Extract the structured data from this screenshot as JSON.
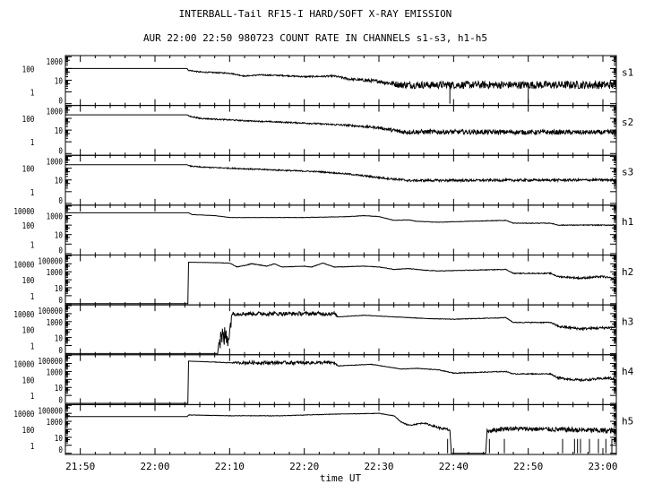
{
  "chart_data": {
    "type": "line",
    "title": "INTERBALL-Tail RF15-I HARD/SOFT X-RAY EMISSION",
    "subtitle": "AUR 22:00 22:50 980723  COUNT RATE IN CHANNELS s1-s3, h1-h5",
    "xlabel": "time UT",
    "x_unit": "minutes after 22:00 UT",
    "xlim": [
      -12,
      61.8
    ],
    "x_ticks": [
      {
        "t": -10,
        "label": "21:50"
      },
      {
        "t": 0,
        "label": "22:00"
      },
      {
        "t": 10,
        "label": "22:10"
      },
      {
        "t": 20,
        "label": "22:20"
      },
      {
        "t": 30,
        "label": "22:30"
      },
      {
        "t": 40,
        "label": "22:40"
      },
      {
        "t": 50,
        "label": "22:50"
      },
      {
        "t": 60,
        "label": "23:00"
      }
    ],
    "y_scale": "log10 count rate (0 counts drawn at level -1)",
    "panels": [
      {
        "name": "s1",
        "ylim": [
          -1.15,
          3.1
        ],
        "y_ticks": [
          "0",
          "1",
          "10",
          "100",
          "1000"
        ],
        "series": [
          [
            -12,
            2,
            0
          ],
          [
            4.3,
            2,
            0
          ],
          [
            4.5,
            1.85,
            0.05
          ],
          [
            6,
            1.7,
            0.05
          ],
          [
            10,
            1.6,
            0.05
          ],
          [
            12,
            1.35,
            0.05
          ],
          [
            14,
            1.45,
            0.05
          ],
          [
            17,
            1.4,
            0.05
          ],
          [
            20,
            1.3,
            0.06
          ],
          [
            24,
            1.35,
            0.08
          ],
          [
            26,
            1.1,
            0.1
          ],
          [
            30,
            0.9,
            0.15
          ],
          [
            33,
            0.6,
            0.3
          ],
          [
            62,
            0.6,
            0.35
          ]
        ],
        "dropouts": [
          39.5,
          50.0
        ]
      },
      {
        "name": "s2",
        "ylim": [
          -1.15,
          3.1
        ],
        "y_ticks": [
          "0",
          "1",
          "10",
          "100",
          "1000"
        ],
        "series": [
          [
            -12,
            2.3,
            0
          ],
          [
            4.3,
            2.3,
            0
          ],
          [
            4.5,
            2.2,
            0.05
          ],
          [
            6,
            2.0,
            0.05
          ],
          [
            12,
            1.8,
            0.05
          ],
          [
            20,
            1.6,
            0.06
          ],
          [
            26,
            1.4,
            0.08
          ],
          [
            30,
            1.2,
            0.1
          ],
          [
            33,
            0.85,
            0.2
          ],
          [
            62,
            0.8,
            0.2
          ]
        ],
        "dropouts": []
      },
      {
        "name": "s3",
        "ylim": [
          -1.15,
          3.1
        ],
        "y_ticks": [
          "0",
          "1",
          "10",
          "100",
          "1000"
        ],
        "series": [
          [
            -12,
            2.3,
            0
          ],
          [
            4.3,
            2.3,
            0
          ],
          [
            4.5,
            2.2,
            0.04
          ],
          [
            6,
            2.1,
            0.04
          ],
          [
            14,
            1.9,
            0.05
          ],
          [
            22,
            1.7,
            0.05
          ],
          [
            26,
            1.5,
            0.06
          ],
          [
            30,
            1.2,
            0.08
          ],
          [
            34,
            0.95,
            0.1
          ],
          [
            62,
            1.0,
            0.1
          ]
        ],
        "dropouts": []
      },
      {
        "name": "h1",
        "ylim": [
          -1.15,
          4.1
        ],
        "y_ticks": [
          "0",
          "1",
          "10",
          "100",
          "1000",
          "10000"
        ],
        "series": [
          [
            -12,
            3.3,
            0
          ],
          [
            4.5,
            3.3,
            0
          ],
          [
            5,
            3.1,
            0.01
          ],
          [
            8,
            3.0,
            0.01
          ],
          [
            10,
            2.8,
            0.01
          ],
          [
            20,
            2.8,
            0.02
          ],
          [
            26,
            2.9,
            0.02
          ],
          [
            28,
            3.0,
            0.02
          ],
          [
            30,
            2.9,
            0.02
          ],
          [
            32,
            2.5,
            0.02
          ],
          [
            34,
            2.55,
            0.02
          ],
          [
            35,
            2.4,
            0.02
          ],
          [
            38,
            2.3,
            0.02
          ],
          [
            42,
            2.4,
            0.02
          ],
          [
            47,
            2.5,
            0.03
          ],
          [
            48,
            2.2,
            0.03
          ],
          [
            53,
            2.2,
            0.03
          ],
          [
            54,
            2.0,
            0.04
          ],
          [
            62,
            2.0,
            0.05
          ]
        ],
        "dropouts": []
      },
      {
        "name": "h2",
        "ylim": [
          -1.15,
          5.1
        ],
        "y_ticks": [
          "0",
          "1",
          "10",
          "100",
          "1000",
          "10000",
          "100000"
        ],
        "series": [
          [
            -12,
            -1,
            0
          ],
          [
            4.4,
            -1,
            0
          ],
          [
            4.5,
            4.2,
            0
          ],
          [
            10,
            4.1,
            0.03
          ],
          [
            11,
            3.6,
            0.03
          ],
          [
            13,
            4.0,
            0.05
          ],
          [
            15,
            3.7,
            0.03
          ],
          [
            16,
            4.0,
            0.03
          ],
          [
            17,
            3.6,
            0.03
          ],
          [
            20,
            3.7,
            0.03
          ],
          [
            21,
            3.6,
            0.03
          ],
          [
            22.5,
            4.1,
            0.03
          ],
          [
            24,
            3.6,
            0.03
          ],
          [
            28,
            3.7,
            0.03
          ],
          [
            30,
            3.6,
            0.03
          ],
          [
            32,
            3.3,
            0.03
          ],
          [
            34,
            3.4,
            0.03
          ],
          [
            36,
            3.2,
            0.03
          ],
          [
            38,
            3.1,
            0.04
          ],
          [
            47,
            3.3,
            0.04
          ],
          [
            48,
            2.8,
            0.05
          ],
          [
            53,
            2.8,
            0.06
          ],
          [
            54,
            2.4,
            0.1
          ],
          [
            57,
            2.2,
            0.12
          ],
          [
            60,
            2.4,
            0.12
          ],
          [
            62,
            2.0,
            0.15
          ]
        ],
        "dropouts": []
      },
      {
        "name": "h3",
        "ylim": [
          -1.15,
          5.1
        ],
        "y_ticks": [
          "0",
          "1",
          "10",
          "100",
          "1000",
          "10000",
          "100000"
        ],
        "series": [
          [
            -12,
            -1,
            0
          ],
          [
            8.4,
            -1,
            0
          ],
          [
            8.5,
            0.5,
            1.5
          ],
          [
            10,
            1.5,
            1.5
          ],
          [
            10.3,
            4.0,
            0.25
          ],
          [
            24,
            4.0,
            0.25
          ],
          [
            24.5,
            3.6,
            0.03
          ],
          [
            28,
            3.8,
            0.03
          ],
          [
            32,
            3.6,
            0.03
          ],
          [
            36,
            3.4,
            0.03
          ],
          [
            40,
            3.3,
            0.04
          ],
          [
            47,
            3.5,
            0.04
          ],
          [
            48,
            2.9,
            0.05
          ],
          [
            53,
            2.9,
            0.06
          ],
          [
            54,
            2.4,
            0.15
          ],
          [
            57,
            2.1,
            0.15
          ],
          [
            62,
            2.3,
            0.15
          ]
        ],
        "dropouts": []
      },
      {
        "name": "h4",
        "ylim": [
          -1.15,
          5.1
        ],
        "y_ticks": [
          "0",
          "1",
          "10",
          "100",
          "1000",
          "10000",
          "100000"
        ],
        "series": [
          [
            -12,
            -1,
            0
          ],
          [
            4.4,
            -1,
            0
          ],
          [
            4.5,
            4.3,
            0
          ],
          [
            10,
            4.1,
            0.05
          ],
          [
            12,
            4.1,
            0.2
          ],
          [
            24,
            4.1,
            0.2
          ],
          [
            24.5,
            3.7,
            0.03
          ],
          [
            29,
            3.9,
            0.03
          ],
          [
            33,
            3.3,
            0.03
          ],
          [
            35,
            3.4,
            0.03
          ],
          [
            38,
            3.2,
            0.04
          ],
          [
            40,
            2.8,
            0.05
          ],
          [
            47,
            3.0,
            0.05
          ],
          [
            48,
            2.7,
            0.05
          ],
          [
            53,
            2.7,
            0.06
          ],
          [
            54,
            2.2,
            0.12
          ],
          [
            57,
            1.9,
            0.15
          ],
          [
            61,
            2.2,
            0.12
          ],
          [
            62,
            1.9,
            0.15
          ]
        ],
        "dropouts": []
      },
      {
        "name": "h5",
        "ylim": [
          -1.15,
          5.1
        ],
        "y_ticks": [
          "0",
          "1",
          "10",
          "100",
          "1000",
          "10000",
          "100000"
        ],
        "series": [
          [
            -12,
            3.6,
            0
          ],
          [
            4.3,
            3.6,
            0
          ],
          [
            4.5,
            3.8,
            0.03
          ],
          [
            10,
            3.7,
            0.03
          ],
          [
            17,
            3.7,
            0.03
          ],
          [
            20,
            3.8,
            0.03
          ],
          [
            24,
            3.9,
            0.03
          ],
          [
            30,
            4.0,
            0.03
          ],
          [
            32,
            3.7,
            0.04
          ],
          [
            33,
            2.9,
            0.05
          ],
          [
            34,
            2.5,
            0.08
          ],
          [
            36,
            2.8,
            0.08
          ],
          [
            38,
            2.2,
            0.15
          ],
          [
            39.5,
            1.9,
            0.2
          ],
          [
            39.7,
            -1,
            0
          ],
          [
            44.3,
            -1,
            0
          ],
          [
            44.5,
            1.8,
            0.3
          ],
          [
            47,
            2.1,
            0.25
          ],
          [
            53,
            2.0,
            0.3
          ],
          [
            62,
            1.8,
            0.35
          ]
        ],
        "dropouts": [
          39.2,
          44.8,
          46.8,
          54.6,
          56.2,
          56.6,
          57.0,
          58.2,
          59.4,
          60.4,
          61.2
        ]
      }
    ]
  }
}
